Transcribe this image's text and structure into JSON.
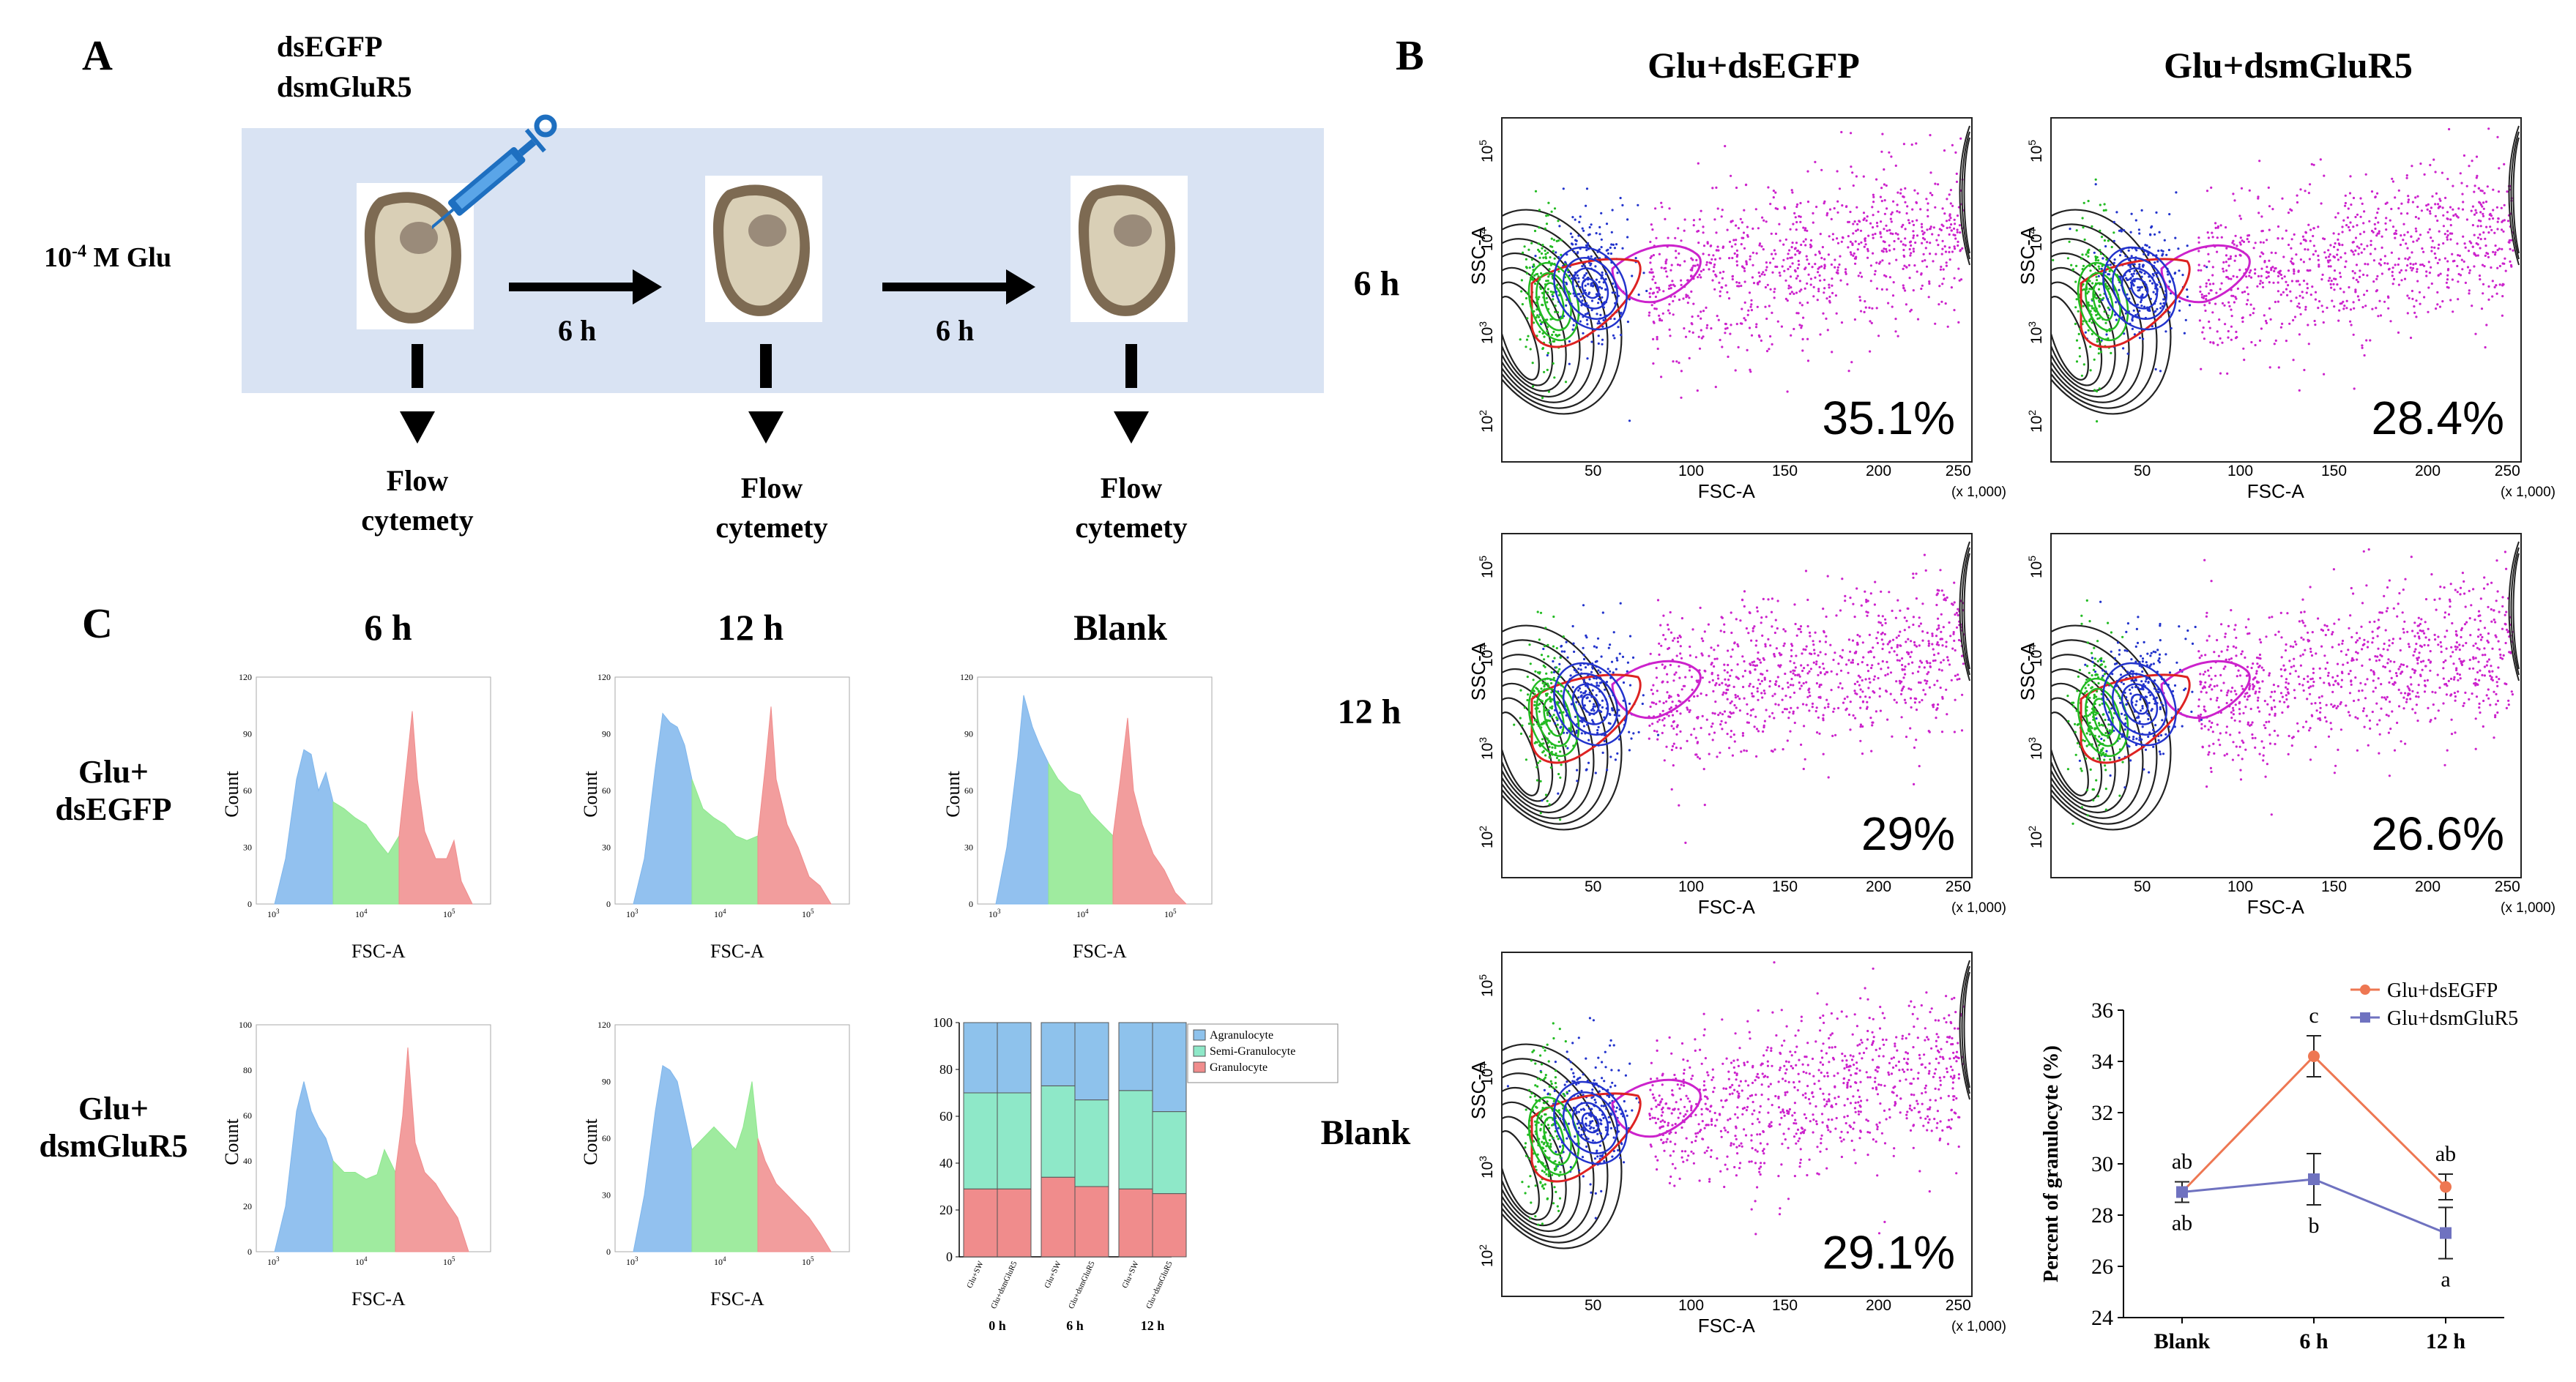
{
  "panels": {
    "a": "A",
    "b": "B",
    "c": "C"
  },
  "panelA": {
    "treatments": [
      "dsEGFP",
      "dsmGluR5"
    ],
    "glu_label_base": "10",
    "glu_label_exp": "-4",
    "glu_label_rest": " M Glu",
    "interval1": "6 h",
    "interval2": "6 h",
    "flow_labels": [
      {
        "line1": "Flow",
        "line2": "cytemety"
      },
      {
        "line1": "Flow",
        "line2": "cytemety"
      },
      {
        "line1": "Flow",
        "line2": "cytemety"
      }
    ]
  },
  "panelB": {
    "col_titles": [
      "Glu+dsEGFP",
      "Glu+dsmGluR5"
    ],
    "row_titles": [
      "6 h",
      "12 h",
      "Blank"
    ],
    "x_label": "FSC-A",
    "y_label": "SSC-A",
    "x_unit": "(x 1,000)",
    "x_ticks": [
      "50",
      "100",
      "150",
      "200",
      "250"
    ],
    "y_ticks": [
      {
        "base": "10",
        "exp": "5"
      },
      {
        "base": "10",
        "exp": "4"
      },
      {
        "base": "10",
        "exp": "3"
      },
      {
        "base": "10",
        "exp": "2"
      }
    ],
    "plots": [
      {
        "id": "6h-dsegfp",
        "pct": "35.1%"
      },
      {
        "id": "6h-dsmglur5",
        "pct": "28.4%"
      },
      {
        "id": "12h-dsegfp",
        "pct": "29%"
      },
      {
        "id": "12h-dsmglur5",
        "pct": "26.6%"
      },
      {
        "id": "blank-dsegfp",
        "pct": "29.1%"
      }
    ],
    "colors": {
      "agranulocyte": "#22bb22",
      "semi": "#2233cc",
      "granulocyte": "#cc22cc",
      "debris": "#222222",
      "gate": "#dd2222"
    }
  },
  "panelC": {
    "col_titles": [
      "6 h",
      "12 h",
      "Blank"
    ],
    "row_titles": [
      {
        "line1": "Glu+",
        "line2": "dsEGFP"
      },
      {
        "line1": "Glu+",
        "line2": "dsmGluR5"
      }
    ],
    "x_label": "FSC-A",
    "y_label": "Count",
    "hist_y_ticks": {
      "r1c1": [
        "120",
        "90",
        "60",
        "30",
        "0"
      ],
      "r1c2": [
        "120",
        "90",
        "60",
        "30",
        "0"
      ],
      "r1c3": [
        "120",
        "90",
        "60",
        "30",
        "0"
      ],
      "r2c1": [
        "100",
        "80",
        "60",
        "40",
        "20",
        "0"
      ],
      "r2c2": [
        "120",
        "90",
        "60",
        "30",
        "0"
      ]
    },
    "hist_x_ticks": [
      {
        "base": "10",
        "exp": "3"
      },
      {
        "base": "10",
        "exp": "4"
      },
      {
        "base": "10",
        "exp": "5"
      }
    ],
    "colors": {
      "agranulocyte": "#7fb6ec",
      "semi": "#8ee88e",
      "granulocyte": "#f08c8c"
    }
  },
  "chart_data": [
    {
      "type": "bar",
      "title": "",
      "stacked": true,
      "categories": [
        "Glu+SW",
        "Glu+dsmGluR5",
        "Glu+SW",
        "Glu+dsmGluR5",
        "Glu+SW",
        "Glu+dsmGluR5"
      ],
      "groups": [
        "0 h",
        "6 h",
        "12 h"
      ],
      "series": [
        {
          "name": "Granulocyte",
          "color": "#f08c8c",
          "values": [
            29,
            29,
            34,
            30,
            29,
            27
          ]
        },
        {
          "name": "Semi-Granulocyte",
          "color": "#8ee8c8",
          "values": [
            41,
            41,
            39,
            37,
            42,
            35
          ]
        },
        {
          "name": "Agranulocyte",
          "color": "#8ec2ec",
          "values": [
            30,
            30,
            27,
            33,
            29,
            38
          ]
        }
      ],
      "ylim": [
        0,
        100
      ],
      "y_ticks": [
        "0",
        "20",
        "40",
        "60",
        "80",
        "100"
      ],
      "legend": "right"
    },
    {
      "type": "line",
      "title": "",
      "xlabel": "",
      "ylabel": "Percent of granulocyte (%)",
      "categories": [
        "Blank",
        "6 h",
        "12 h"
      ],
      "ylim": [
        24,
        36
      ],
      "y_ticks": [
        "24",
        "26",
        "28",
        "30",
        "32",
        "34",
        "36"
      ],
      "series": [
        {
          "name": "Glu+dsEGFP",
          "color": "#ee7752",
          "values": [
            28.9,
            34.2,
            29.1
          ],
          "errors": [
            0.4,
            0.8,
            0.5
          ],
          "letters": [
            "ab",
            "c",
            "ab"
          ]
        },
        {
          "name": "Glu+dsmGluR5",
          "color": "#6f72c0",
          "values": [
            28.9,
            29.4,
            27.3
          ],
          "errors": [
            0.4,
            1.0,
            1.0
          ],
          "letters": [
            "ab",
            "b",
            "a"
          ]
        }
      ],
      "legend": "top-right"
    }
  ]
}
